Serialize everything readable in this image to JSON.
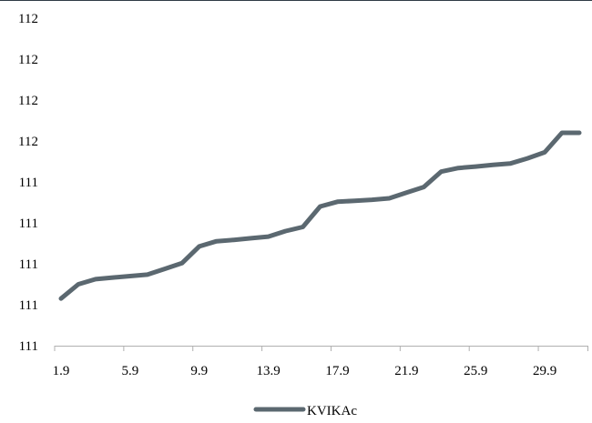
{
  "chart_data": {
    "type": "line",
    "title": "",
    "xlabel": "",
    "ylabel": "",
    "x_tick_labels": [
      "1.9",
      "5.9",
      "9.9",
      "13.9",
      "17.9",
      "21.9",
      "25.9",
      "29.9"
    ],
    "y_tick_labels": [
      "111",
      "111",
      "111",
      "111",
      "111",
      "112",
      "112",
      "112",
      "112"
    ],
    "x_tick_days": [
      1,
      5,
      9,
      13,
      17,
      21,
      25,
      29
    ],
    "ylim": [
      110.8,
      112.4
    ],
    "xlim": [
      1,
      31
    ],
    "grid": false,
    "legend": "bottom-center",
    "colors": {
      "series": "#5b6870",
      "frame": "#2f3b45",
      "axis": "#b0b0b0"
    },
    "series": [
      {
        "name": "KVIKAc",
        "x": [
          1,
          2,
          3,
          4,
          5,
          6,
          7,
          8,
          9,
          10,
          11,
          12,
          13,
          14,
          15,
          16,
          17,
          18,
          19,
          20,
          21,
          22,
          23,
          24,
          25,
          26,
          27,
          28,
          29,
          30,
          31
        ],
        "values": [
          111.03,
          111.1,
          111.125,
          111.133,
          111.14,
          111.147,
          111.175,
          111.203,
          111.285,
          111.31,
          111.317,
          111.325,
          111.333,
          111.36,
          111.38,
          111.48,
          111.503,
          111.508,
          111.513,
          111.52,
          111.548,
          111.575,
          111.65,
          111.668,
          111.675,
          111.683,
          111.69,
          111.715,
          111.745,
          111.84,
          111.84
        ]
      }
    ]
  }
}
